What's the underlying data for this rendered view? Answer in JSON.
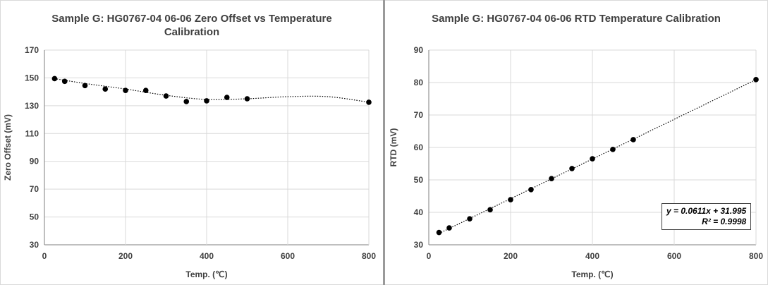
{
  "chart_data": [
    {
      "type": "scatter",
      "title": "Sample G: HG0767-04 06-06 Zero Offset vs Temperature Calibration",
      "xlabel": "Temp. (℃)",
      "ylabel": "Zero Offset  (mV)",
      "xlim": [
        0,
        800
      ],
      "ylim": [
        30,
        170
      ],
      "xticks": [
        0,
        200,
        400,
        600,
        800
      ],
      "yticks": [
        30,
        50,
        70,
        90,
        110,
        130,
        150,
        170
      ],
      "x": [
        25,
        50,
        100,
        150,
        200,
        250,
        300,
        350,
        400,
        450,
        500,
        800
      ],
      "y": [
        149.5,
        147.5,
        144.5,
        142,
        141,
        141,
        137,
        133,
        133.5,
        136,
        135,
        132.5
      ],
      "trendline": "polynomial",
      "trend_x": [
        25,
        100,
        200,
        300,
        400,
        500,
        600,
        700,
        800
      ],
      "trend_y": [
        149.5,
        146,
        142,
        137.5,
        134.5,
        135,
        136.5,
        136.5,
        132.5
      ],
      "grid": true
    },
    {
      "type": "scatter",
      "title": "Sample G: HG0767-04 06-06 RTD Temperature Calibration",
      "xlabel": "Temp. (℃)",
      "ylabel": "RTD (mV)",
      "xlim": [
        0,
        800
      ],
      "ylim": [
        30,
        90
      ],
      "xticks": [
        0,
        200,
        400,
        600,
        800
      ],
      "yticks": [
        30,
        40,
        50,
        60,
        70,
        80,
        90
      ],
      "x": [
        25,
        50,
        100,
        150,
        200,
        250,
        300,
        350,
        400,
        450,
        500,
        800
      ],
      "y": [
        33.8,
        35.2,
        38,
        40.8,
        43.9,
        47,
        50.4,
        53.5,
        56.5,
        59.4,
        62.4,
        80.9
      ],
      "trendline": "linear",
      "trend_x": [
        25,
        800
      ],
      "trend_y": [
        33.5,
        80.9
      ],
      "equation": "y = 0.0611x + 31.995",
      "r_squared": "R² = 0.9998",
      "grid": true
    }
  ]
}
